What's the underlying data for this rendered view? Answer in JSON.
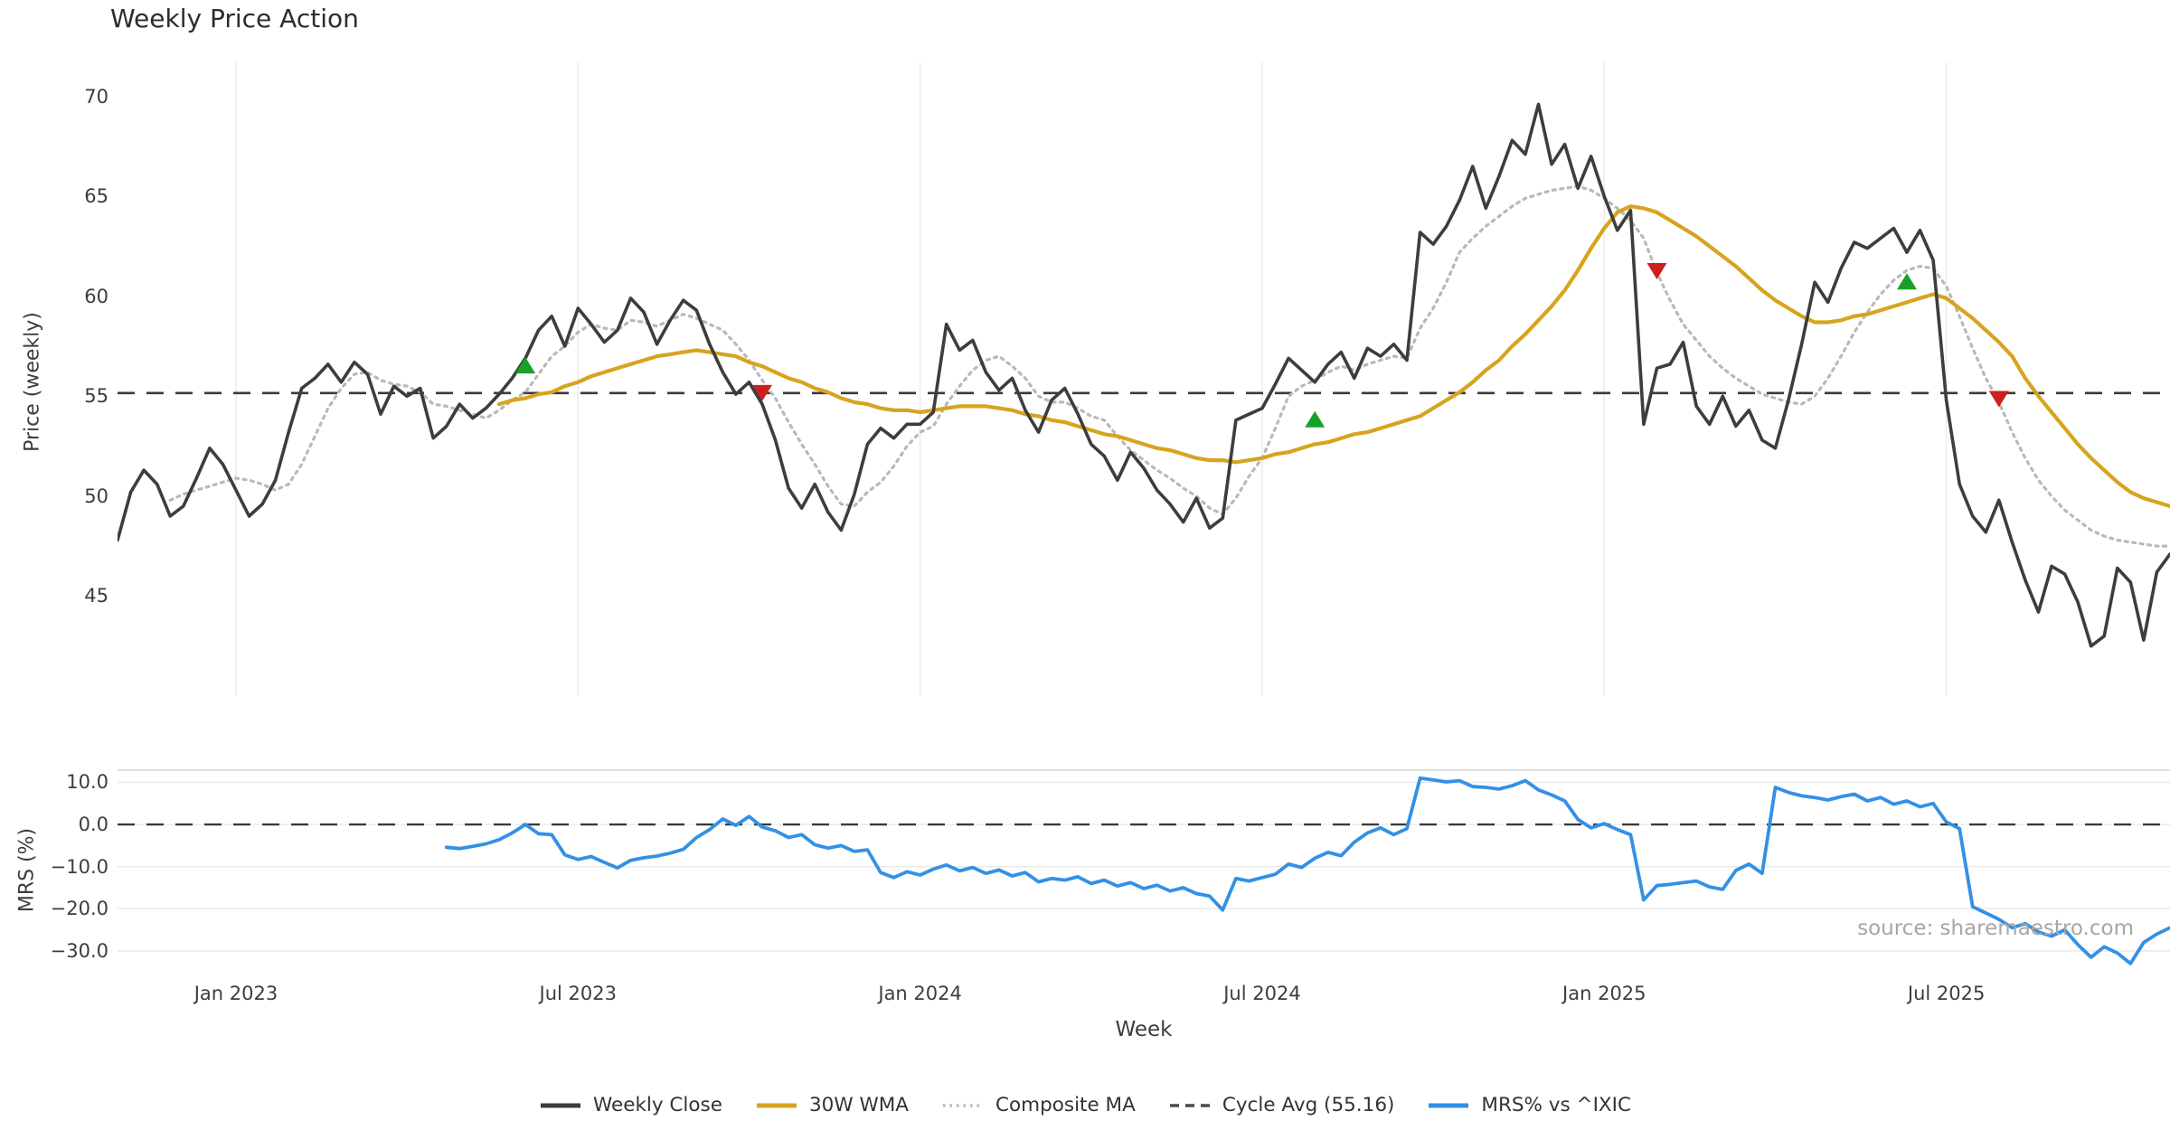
{
  "chart_data": {
    "type": "line",
    "title": "Weekly Price Action",
    "xlabel": "Week",
    "source": "source: sharemaestro.com",
    "x": {
      "start_date": "2022-10-30",
      "freq_days": 7,
      "n_weeks": 157
    },
    "x_ticks": [
      {
        "week": 9,
        "label": "Jan 2023"
      },
      {
        "week": 35,
        "label": "Jul 2023"
      },
      {
        "week": 61,
        "label": "Jan 2024"
      },
      {
        "week": 87,
        "label": "Jul 2024"
      },
      {
        "week": 113,
        "label": "Jan 2025"
      },
      {
        "week": 139,
        "label": "Jul 2025"
      }
    ],
    "grid": {
      "top_panel": "vertical",
      "bottom_panel": "horizontal"
    },
    "panels": [
      {
        "name": "price",
        "ylabel": "Price (weekly)",
        "ylim": [
          40.0,
          71.7
        ],
        "y_ticks": [
          {
            "value": 70,
            "label": "70"
          },
          {
            "value": 65,
            "label": "65"
          },
          {
            "value": 60,
            "label": "60"
          },
          {
            "value": 55,
            "label": "55"
          },
          {
            "value": 50,
            "label": "50"
          },
          {
            "value": 45,
            "label": "45"
          }
        ],
        "cycle_avg": {
          "value": 55.16,
          "color": "#3a3a3a",
          "style": "dashed"
        },
        "series": [
          {
            "name": "Weekly Close",
            "color": "#3d3d3d",
            "style": "solid",
            "width": 3.6,
            "values": [
              47.8,
              50.2,
              51.3,
              50.6,
              49.0,
              49.5,
              50.9,
              52.4,
              51.6,
              50.3,
              49.0,
              49.6,
              50.8,
              53.2,
              55.4,
              55.9,
              56.6,
              55.7,
              56.7,
              56.1,
              54.1,
              55.5,
              55.0,
              55.4,
              52.9,
              53.5,
              54.6,
              53.9,
              54.4,
              55.1,
              55.9,
              56.9,
              58.3,
              59.0,
              57.5,
              59.4,
              58.6,
              57.7,
              58.3,
              59.9,
              59.2,
              57.6,
              58.8,
              59.8,
              59.3,
              57.6,
              56.2,
              55.1,
              55.7,
              54.6,
              52.8,
              50.4,
              49.4,
              50.6,
              49.2,
              48.3,
              50.1,
              52.6,
              53.4,
              52.9,
              53.6,
              53.6,
              54.2,
              58.6,
              57.3,
              57.8,
              56.2,
              55.3,
              55.9,
              54.3,
              53.2,
              54.8,
              55.4,
              54.1,
              52.6,
              52.0,
              50.8,
              52.2,
              51.4,
              50.3,
              49.6,
              48.7,
              49.9,
              48.4,
              48.9,
              53.8,
              54.1,
              54.4,
              55.6,
              56.9,
              56.3,
              55.7,
              56.6,
              57.2,
              55.9,
              57.4,
              57.0,
              57.6,
              56.8,
              63.2,
              62.6,
              63.5,
              64.8,
              66.5,
              64.4,
              66.0,
              67.8,
              67.1,
              69.6,
              66.6,
              67.6,
              65.4,
              67.0,
              65.0,
              63.3,
              64.3,
              53.6,
              56.4,
              56.6,
              57.7,
              54.5,
              53.6,
              55.0,
              53.5,
              54.3,
              52.8,
              52.4,
              54.8,
              57.6,
              60.7,
              59.7,
              61.4,
              62.7,
              62.4,
              62.9,
              63.4,
              62.2,
              63.3,
              61.8,
              54.8,
              50.6,
              49.0,
              48.2,
              49.8,
              47.7,
              45.8,
              44.2,
              46.5,
              46.1,
              44.7,
              42.5,
              43.0,
              46.4,
              45.7,
              42.8,
              46.2,
              47.1
            ]
          },
          {
            "name": "30W WMA",
            "color": "#d6a41e",
            "style": "solid",
            "width": 4.2,
            "values": [
              null,
              null,
              null,
              null,
              null,
              null,
              null,
              null,
              null,
              null,
              null,
              null,
              null,
              null,
              null,
              null,
              null,
              null,
              null,
              null,
              null,
              null,
              null,
              null,
              null,
              null,
              null,
              null,
              null,
              54.6,
              54.8,
              54.9,
              55.1,
              55.2,
              55.5,
              55.7,
              56.0,
              56.2,
              56.4,
              56.6,
              56.8,
              57.0,
              57.1,
              57.2,
              57.3,
              57.2,
              57.1,
              57.0,
              56.7,
              56.5,
              56.2,
              55.9,
              55.7,
              55.4,
              55.2,
              54.9,
              54.7,
              54.6,
              54.4,
              54.3,
              54.3,
              54.2,
              54.3,
              54.4,
              54.5,
              54.5,
              54.5,
              54.4,
              54.3,
              54.1,
              54.0,
              53.8,
              53.7,
              53.5,
              53.3,
              53.1,
              53.0,
              52.8,
              52.6,
              52.4,
              52.3,
              52.1,
              51.9,
              51.8,
              51.8,
              51.7,
              51.8,
              51.9,
              52.1,
              52.2,
              52.4,
              52.6,
              52.7,
              52.9,
              53.1,
              53.2,
              53.4,
              53.6,
              53.8,
              54.0,
              54.4,
              54.8,
              55.2,
              55.7,
              56.3,
              56.8,
              57.5,
              58.1,
              58.8,
              59.5,
              60.3,
              61.3,
              62.4,
              63.4,
              64.2,
              64.5,
              64.4,
              64.2,
              63.8,
              63.4,
              63.0,
              62.5,
              62.0,
              61.5,
              60.9,
              60.3,
              59.8,
              59.4,
              59.0,
              58.7,
              58.7,
              58.8,
              59.0,
              59.1,
              59.3,
              59.5,
              59.7,
              59.9,
              60.1,
              59.9,
              59.4,
              58.9,
              58.3,
              57.7,
              57.0,
              55.9,
              55.0,
              54.2,
              53.4,
              52.6,
              51.9,
              51.3,
              50.7,
              50.2,
              49.9,
              49.7,
              49.5
            ]
          },
          {
            "name": "Composite MA",
            "color": "#b9b9b9",
            "style": "dotted",
            "width": 3.2,
            "values": [
              null,
              null,
              null,
              null,
              49.8,
              50.1,
              50.3,
              50.5,
              50.7,
              50.9,
              50.8,
              50.6,
              50.3,
              50.6,
              51.6,
              53.0,
              54.4,
              55.4,
              56.1,
              56.2,
              55.8,
              55.6,
              55.5,
              55.2,
              54.6,
              54.5,
              54.3,
              54.1,
              53.9,
              54.3,
              54.8,
              55.2,
              56.1,
              57.0,
              57.5,
              58.2,
              58.6,
              58.4,
              58.3,
              58.8,
              58.7,
              58.5,
              58.8,
              59.1,
              58.9,
              58.6,
              58.3,
              57.6,
              56.8,
              55.8,
              54.9,
              53.7,
              52.6,
              51.6,
              50.5,
              49.6,
              49.5,
              50.2,
              50.7,
              51.5,
              52.5,
              53.2,
              53.5,
              54.6,
              55.5,
              56.3,
              56.8,
              57.0,
              56.5,
              55.9,
              55.0,
              54.7,
              54.7,
              54.4,
              54.0,
              53.8,
              53.0,
              52.3,
              51.8,
              51.3,
              50.9,
              50.4,
              50.0,
              49.4,
              49.1,
              49.9,
              51.0,
              51.9,
              53.4,
              55.0,
              55.5,
              55.8,
              56.2,
              56.5,
              56.3,
              56.6,
              56.8,
              57.0,
              56.9,
              58.4,
              59.4,
              60.7,
              62.2,
              62.9,
              63.5,
              64.0,
              64.5,
              64.9,
              65.1,
              65.3,
              65.4,
              65.5,
              65.3,
              64.9,
              64.4,
              63.8,
              62.9,
              61.2,
              59.8,
              58.6,
              57.8,
              57.0,
              56.4,
              55.9,
              55.5,
              55.1,
              54.9,
              54.7,
              54.6,
              55.0,
              55.9,
              57.0,
              58.2,
              59.2,
              60.1,
              60.8,
              61.3,
              61.5,
              61.4,
              60.5,
              59.0,
              57.4,
              55.9,
              54.7,
              53.2,
              51.9,
              50.8,
              50.0,
              49.3,
              48.8,
              48.3,
              48.0,
              47.8,
              47.7,
              47.6,
              47.5,
              47.5
            ]
          }
        ],
        "signals": {
          "buy": {
            "marker": "triangle-up",
            "color": "#18a12a",
            "points": [
              {
                "week": 31,
                "value": 56.5
              },
              {
                "week": 91,
                "value": 53.8
              },
              {
                "week": 136,
                "value": 60.7
              }
            ]
          },
          "sell": {
            "marker": "triangle-down",
            "color": "#cc1f1f",
            "points": [
              {
                "week": 49,
                "value": 55.2
              },
              {
                "week": 117,
                "value": 61.3
              },
              {
                "week": 143,
                "value": 54.9
              }
            ]
          }
        }
      },
      {
        "name": "mrs",
        "ylabel": "MRS (%)",
        "ylim": [
          -35.8,
          13.1
        ],
        "zero_line": {
          "value": 0.0,
          "color": "#3a3a3a",
          "style": "dashed"
        },
        "y_ticks": [
          {
            "value": 10,
            "label": "10.0"
          },
          {
            "value": 0,
            "label": "0.0"
          },
          {
            "value": -10,
            "label": "−10.0"
          },
          {
            "value": -20,
            "label": "−20.0"
          },
          {
            "value": -30,
            "label": "−30.0"
          }
        ],
        "series": [
          {
            "name": "MRS% vs ^IXIC",
            "color": "#3390e6",
            "style": "solid",
            "width": 3.8,
            "values": [
              null,
              null,
              null,
              null,
              null,
              null,
              null,
              null,
              null,
              null,
              null,
              null,
              null,
              null,
              null,
              null,
              null,
              null,
              null,
              null,
              null,
              null,
              null,
              null,
              null,
              -5.4,
              -5.7,
              -5.2,
              -4.6,
              -3.6,
              -2.0,
              0.0,
              -2.2,
              -2.4,
              -7.2,
              -8.3,
              -7.6,
              -9.0,
              -10.3,
              -8.5,
              -7.9,
              -7.5,
              -6.8,
              -5.9,
              -3.1,
              -1.2,
              1.3,
              -0.2,
              1.9,
              -0.6,
              -1.5,
              -3.1,
              -2.4,
              -4.8,
              -5.6,
              -5.0,
              -6.4,
              -6.0,
              -11.4,
              -12.6,
              -11.2,
              -12.0,
              -10.6,
              -9.6,
              -11.0,
              -10.2,
              -11.6,
              -10.8,
              -12.2,
              -11.4,
              -13.6,
              -12.8,
              -13.2,
              -12.4,
              -14.0,
              -13.2,
              -14.6,
              -13.8,
              -15.2,
              -14.4,
              -15.8,
              -15.0,
              -16.4,
              -17.0,
              -20.3,
              -12.8,
              -13.4,
              -12.6,
              -11.8,
              -9.4,
              -10.2,
              -8.0,
              -6.6,
              -7.4,
              -4.2,
              -2.0,
              -0.8,
              -2.4,
              -1.0,
              11.0,
              10.6,
              10.1,
              10.4,
              9.0,
              8.8,
              8.4,
              9.2,
              10.4,
              8.2,
              7.0,
              5.6,
              1.2,
              -0.8,
              0.2,
              -1.2,
              -2.4,
              -17.9,
              -14.5,
              -14.2,
              -13.8,
              -13.4,
              -14.8,
              -15.4,
              -10.9,
              -9.4,
              -11.6,
              8.8,
              7.6,
              6.8,
              6.4,
              5.8,
              6.6,
              7.2,
              5.6,
              6.4,
              4.8,
              5.6,
              4.2,
              5.0,
              0.6,
              -1.0,
              -19.5,
              -21.0,
              -22.5,
              -24.5,
              -23.5,
              -25.5,
              -26.5,
              -25.0,
              -28.5,
              -31.5,
              -29.0,
              -30.5,
              -33.0,
              -28.0,
              -26.0,
              -24.5
            ]
          }
        ]
      }
    ],
    "legend": {
      "position": "bottom-center",
      "items": [
        {
          "label": "Weekly Close",
          "color": "#3d3d3d",
          "style": "solid"
        },
        {
          "label": "30W WMA",
          "color": "#d6a41e",
          "style": "solid"
        },
        {
          "label": "Composite MA",
          "color": "#b9b9b9",
          "style": "dotted"
        },
        {
          "label": "Cycle Avg (55.16)",
          "color": "#4a4a4a",
          "style": "dashed"
        },
        {
          "label": "MRS% vs ^IXIC",
          "color": "#3390e6",
          "style": "solid"
        }
      ]
    },
    "colors": {
      "background": "#ffffff",
      "grid": "#ececec",
      "spine": "#d6d6d6",
      "tick_text": "#3d3d3d",
      "buy_marker": "#18a12a",
      "sell_marker": "#cc1f1f"
    }
  }
}
